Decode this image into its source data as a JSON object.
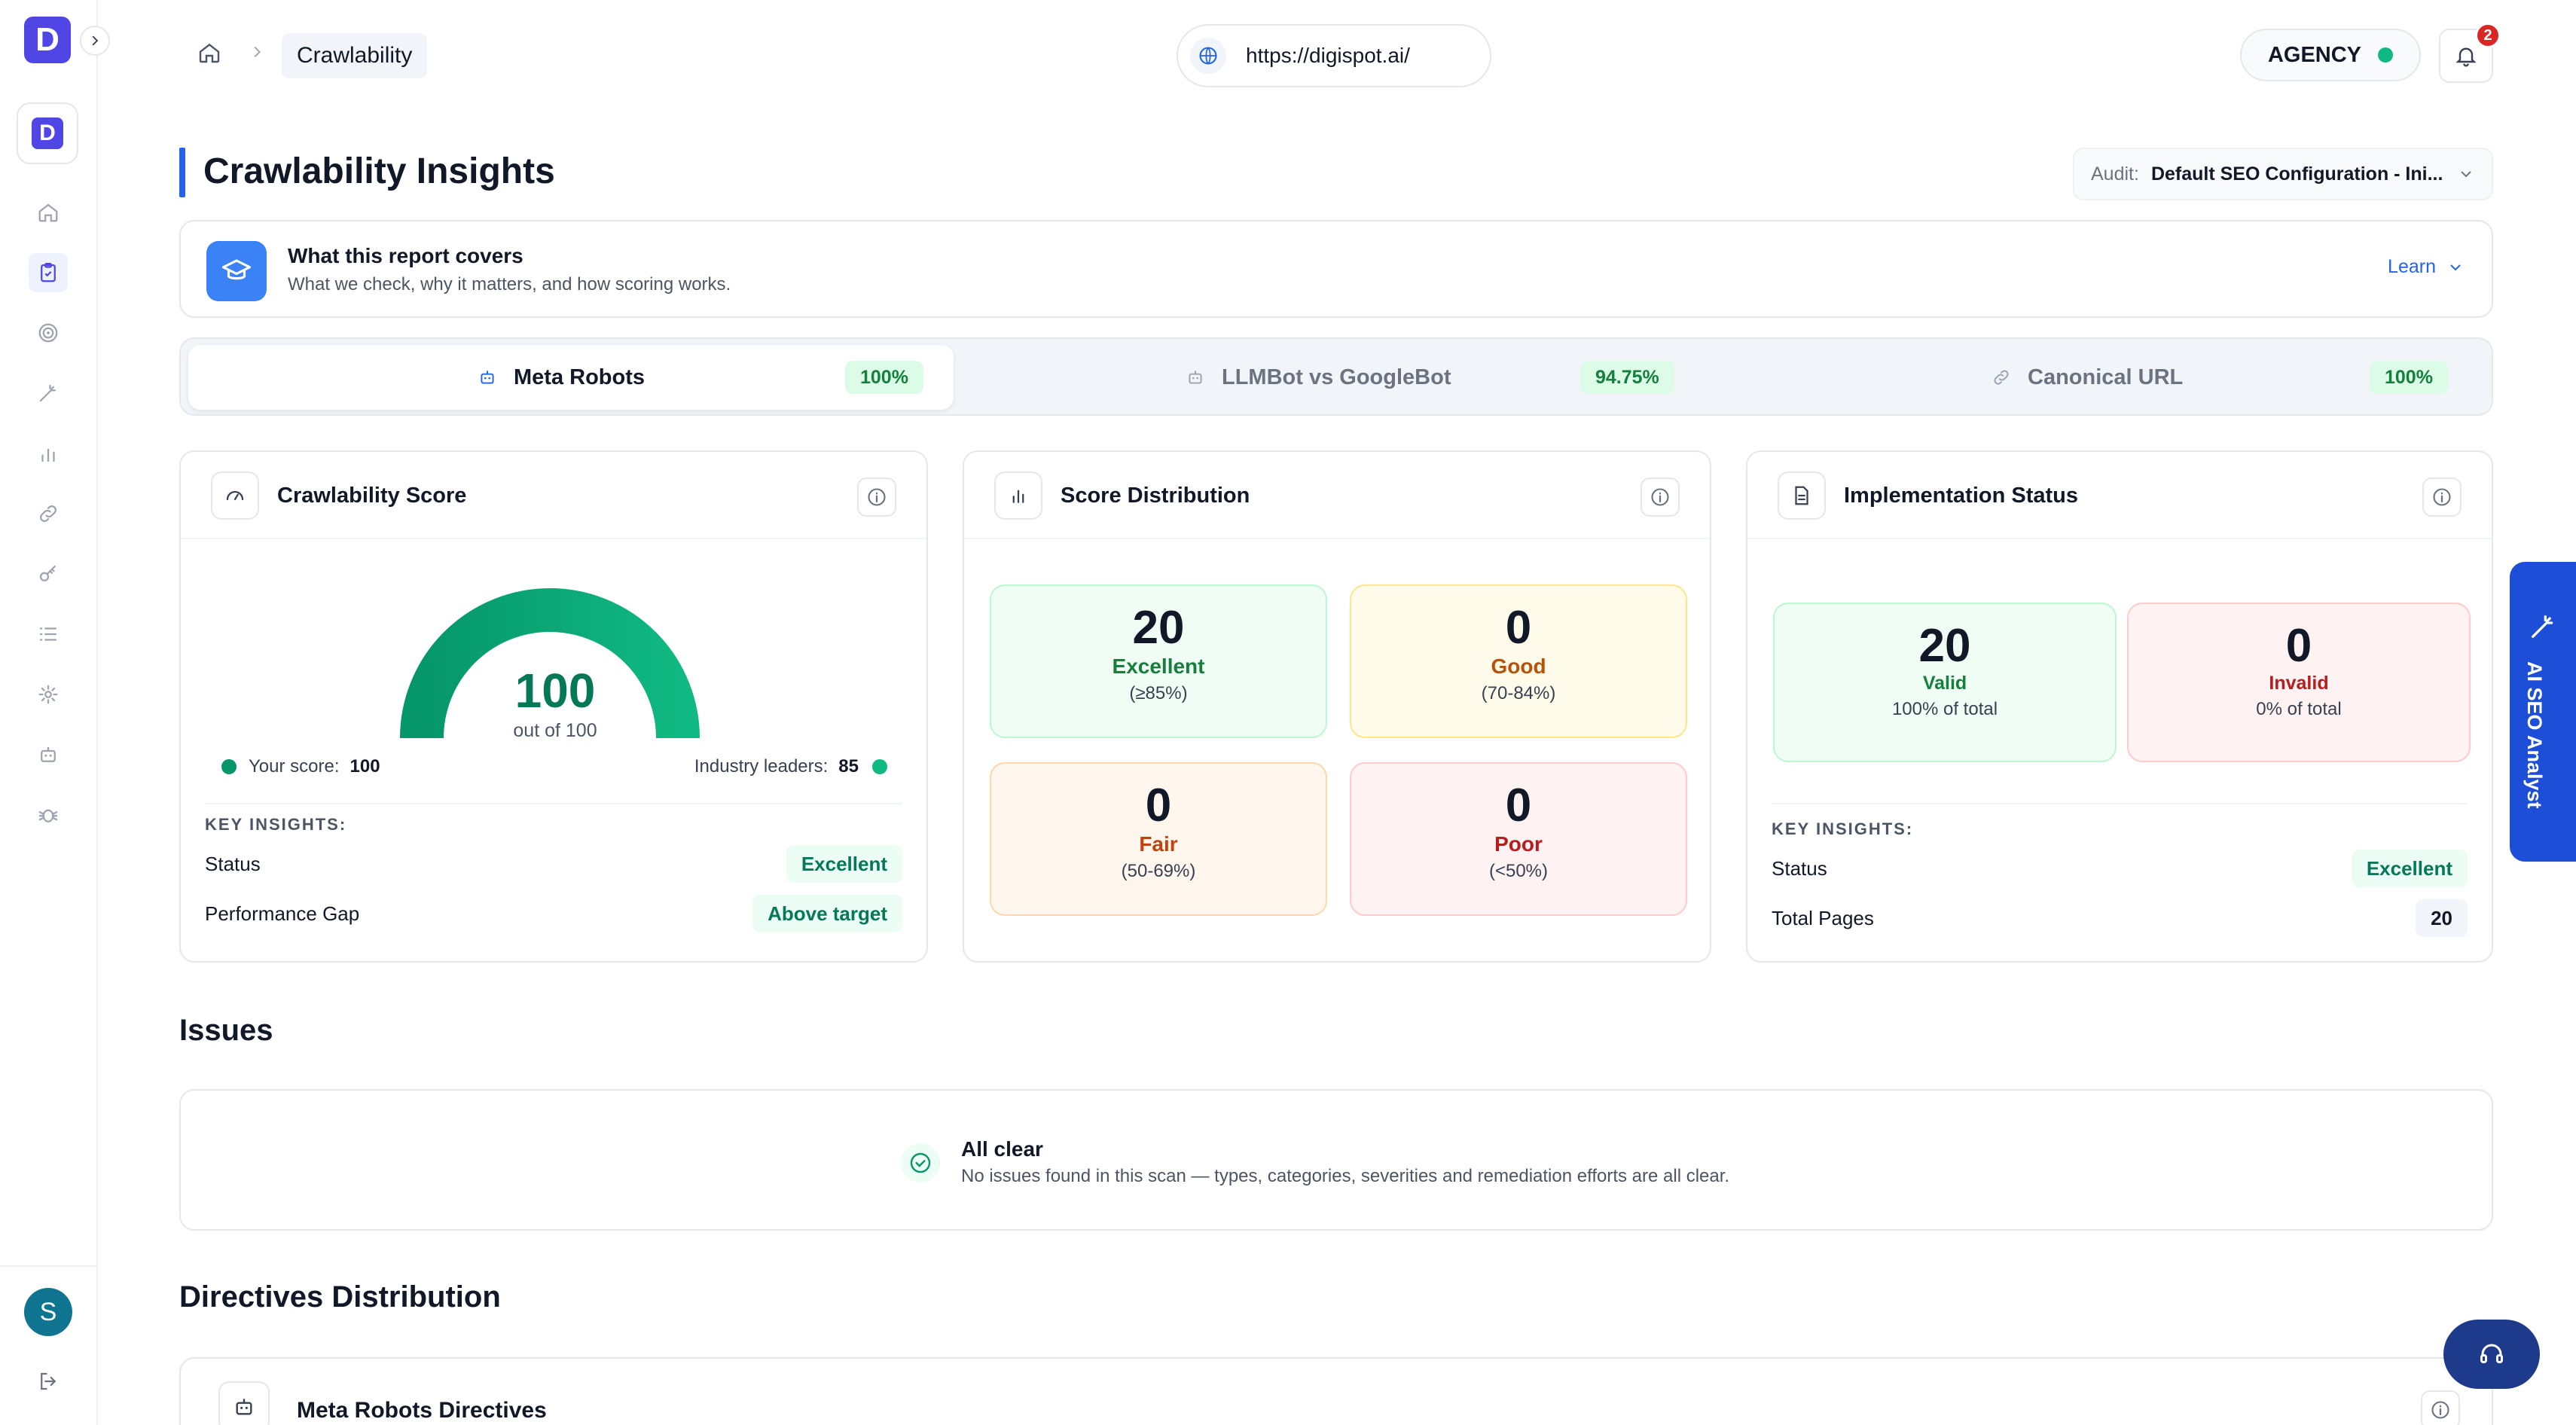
{
  "sidebar": {
    "logo": "D",
    "workspace": "D",
    "avatar": "S",
    "nav_icons": [
      "home-icon",
      "clipboard-icon",
      "target-icon",
      "wand-icon",
      "bar-chart-icon",
      "link-icon",
      "key-icon",
      "list-icon",
      "gear-icon",
      "robot-icon",
      "bug-icon"
    ],
    "active_index": 1
  },
  "header": {
    "breadcrumb": "Crawlability",
    "url": "https://digispot.ai/",
    "plan": "AGENCY",
    "notifications": "2"
  },
  "page": {
    "title": "Crawlability Insights",
    "audit_label": "Audit:",
    "audit_value": "Default SEO Configuration - Ini..."
  },
  "covers": {
    "title": "What this report covers",
    "subtitle": "What we check, why it matters, and how scoring works.",
    "learn": "Learn"
  },
  "tabs": [
    {
      "label": "Meta Robots",
      "pct": "100%",
      "active": true
    },
    {
      "label": "LLMBot vs GoogleBot",
      "pct": "94.75%",
      "active": false
    },
    {
      "label": "Canonical URL",
      "pct": "100%",
      "active": false
    }
  ],
  "score_card": {
    "title": "Crawlability Score",
    "score": "100",
    "out_of": "out of 100",
    "score_value": 100,
    "your_score_label": "Your score:",
    "your_score": "100",
    "industry_label": "Industry leaders:",
    "industry": "85",
    "key_insights": "KEY INSIGHTS:",
    "status_label": "Status",
    "status_value": "Excellent",
    "gap_label": "Performance Gap",
    "gap_value": "Above target"
  },
  "distribution_card": {
    "title": "Score Distribution",
    "tiles": [
      {
        "count": "20",
        "label": "Excellent",
        "range": "(≥85%)"
      },
      {
        "count": "0",
        "label": "Good",
        "range": "(70-84%)"
      },
      {
        "count": "0",
        "label": "Fair",
        "range": "(50-69%)"
      },
      {
        "count": "0",
        "label": "Poor",
        "range": "(<50%)"
      }
    ]
  },
  "status_card": {
    "title": "Implementation Status",
    "valid_count": "20",
    "valid_label": "Valid",
    "valid_sub": "100% of total",
    "invalid_count": "0",
    "invalid_label": "Invalid",
    "invalid_sub": "0% of total",
    "key_insights": "KEY INSIGHTS:",
    "status_label": "Status",
    "status_value": "Excellent",
    "pages_label": "Total Pages",
    "pages_value": "20"
  },
  "issues": {
    "heading": "Issues",
    "title": "All clear",
    "subtitle": "No issues found in this scan — types, categories, severities and remediation efforts are all clear."
  },
  "directives": {
    "heading": "Directives Distribution",
    "card_title": "Meta Robots Directives"
  },
  "ai_tab": "AI SEO Analyst",
  "colors": {
    "accent": "#2563eb",
    "brand": "#4f46e5",
    "success": "#10b981",
    "danger": "#dc2626"
  }
}
